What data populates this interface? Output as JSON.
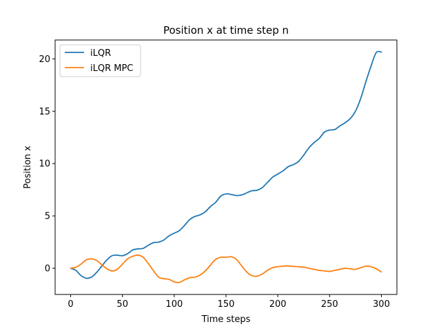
{
  "chart_data": {
    "type": "line",
    "title": "Position x at time step n",
    "xlabel": "Time steps",
    "ylabel": "Position x",
    "xlim": [
      -15,
      315
    ],
    "ylim": [
      -2.5,
      21.8
    ],
    "xticks": [
      0,
      50,
      100,
      150,
      200,
      250,
      300
    ],
    "yticks": [
      0,
      5,
      10,
      15,
      20
    ],
    "grid": false,
    "legend_position": "top-left",
    "series": [
      {
        "name": "iLQR",
        "color": "#1f77b4",
        "x": [
          0,
          5,
          10,
          15,
          20,
          25,
          30,
          35,
          40,
          45,
          50,
          55,
          60,
          65,
          70,
          75,
          80,
          85,
          90,
          95,
          100,
          105,
          110,
          115,
          120,
          125,
          130,
          135,
          140,
          145,
          150,
          155,
          160,
          165,
          170,
          175,
          180,
          185,
          190,
          195,
          200,
          205,
          210,
          215,
          220,
          225,
          230,
          235,
          240,
          245,
          250,
          255,
          260,
          265,
          270,
          275,
          280,
          285,
          290,
          295,
          300
        ],
        "values": [
          0.0,
          -0.2,
          -0.7,
          -0.95,
          -0.85,
          -0.4,
          0.2,
          0.8,
          1.2,
          1.25,
          1.2,
          1.4,
          1.75,
          1.85,
          1.9,
          2.2,
          2.45,
          2.5,
          2.7,
          3.1,
          3.35,
          3.6,
          4.1,
          4.65,
          4.95,
          5.1,
          5.4,
          5.9,
          6.3,
          6.9,
          7.1,
          7.05,
          6.95,
          7.0,
          7.2,
          7.4,
          7.45,
          7.7,
          8.2,
          8.7,
          9.0,
          9.3,
          9.7,
          9.9,
          10.2,
          10.8,
          11.5,
          12.0,
          12.4,
          13.0,
          13.2,
          13.25,
          13.6,
          13.9,
          14.3,
          15.0,
          16.2,
          17.8,
          19.3,
          20.6,
          20.65
        ]
      },
      {
        "name": "iLQR MPC",
        "color": "#ff7f0e",
        "x": [
          0,
          5,
          10,
          15,
          20,
          25,
          30,
          35,
          40,
          45,
          50,
          55,
          60,
          65,
          70,
          75,
          80,
          85,
          90,
          95,
          100,
          105,
          110,
          115,
          120,
          125,
          130,
          135,
          140,
          145,
          150,
          155,
          160,
          165,
          170,
          175,
          180,
          185,
          190,
          195,
          200,
          205,
          210,
          215,
          220,
          225,
          230,
          235,
          240,
          245,
          250,
          255,
          260,
          265,
          270,
          275,
          280,
          285,
          290,
          295,
          300
        ],
        "values": [
          0.0,
          0.1,
          0.4,
          0.8,
          0.9,
          0.75,
          0.35,
          -0.05,
          -0.25,
          -0.1,
          0.4,
          0.9,
          1.15,
          1.25,
          1.05,
          0.45,
          -0.25,
          -0.85,
          -1.0,
          -1.05,
          -1.3,
          -1.35,
          -1.1,
          -0.9,
          -0.85,
          -0.65,
          -0.25,
          0.3,
          0.85,
          1.05,
          1.05,
          1.1,
          0.85,
          0.25,
          -0.35,
          -0.7,
          -0.75,
          -0.55,
          -0.2,
          0.05,
          0.15,
          0.2,
          0.22,
          0.18,
          0.15,
          0.1,
          0.0,
          -0.1,
          -0.2,
          -0.25,
          -0.3,
          -0.2,
          -0.1,
          0.0,
          -0.05,
          -0.1,
          0.05,
          0.2,
          0.15,
          -0.05,
          -0.35
        ]
      }
    ]
  }
}
